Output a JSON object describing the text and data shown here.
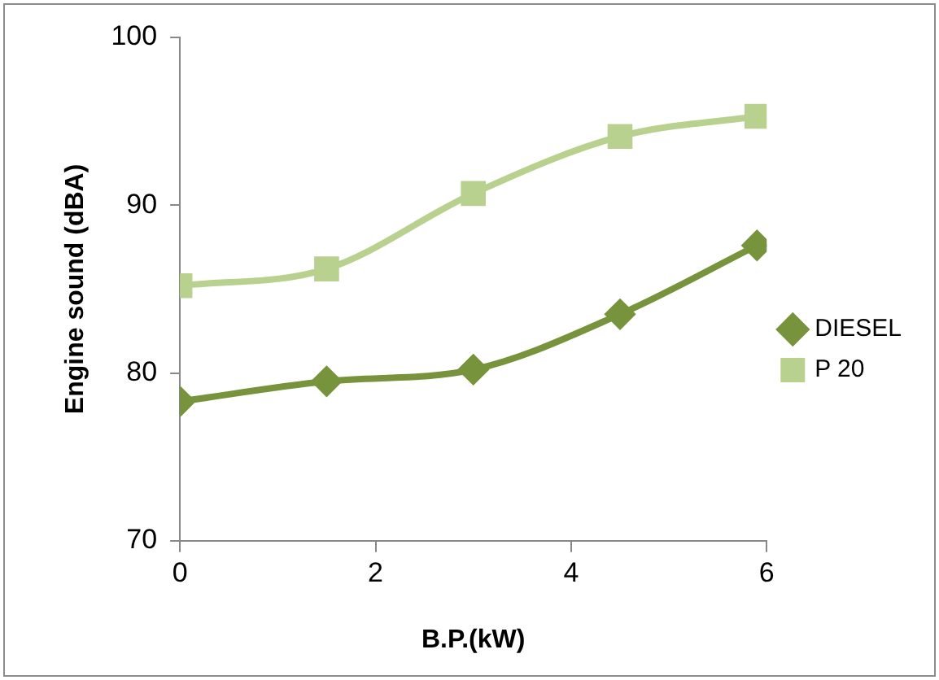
{
  "chart_data": {
    "type": "line",
    "xlabel": "B.P.(kW)",
    "ylabel": "Engine sound (dBA)",
    "x": [
      0,
      1.5,
      3,
      4.5,
      5.9
    ],
    "series": [
      {
        "name": "DIESEL",
        "color": "#77933c",
        "values": [
          78.3,
          79.5,
          80.2,
          83.5,
          87.6
        ],
        "marker": "diamond"
      },
      {
        "name": "P 20",
        "color": "#b9d18e",
        "values": [
          85.2,
          86.2,
          90.7,
          94.1,
          95.3
        ],
        "marker": "square"
      }
    ],
    "xlim": [
      0,
      6
    ],
    "xticks": [
      0,
      2,
      4,
      6
    ],
    "ylim": [
      70,
      100
    ],
    "yticks": [
      70,
      80,
      90,
      100
    ],
    "grid": false,
    "legend": "right",
    "line_style": "solid"
  }
}
